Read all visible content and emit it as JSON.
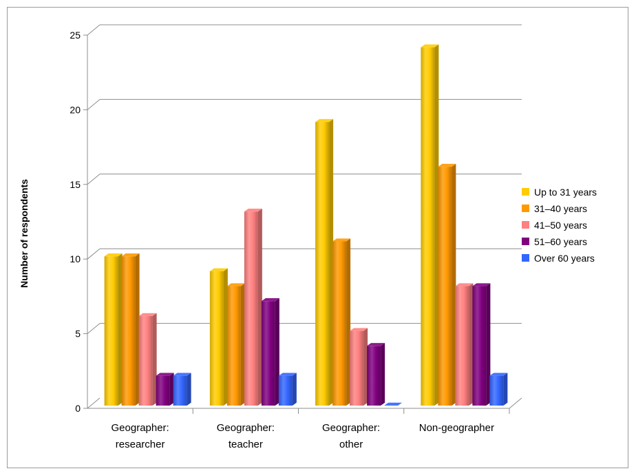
{
  "chart_data": {
    "type": "bar",
    "title": "",
    "xlabel": "",
    "ylabel": "Number of respondents",
    "ylim": [
      0,
      25
    ],
    "yticks": [
      0,
      5,
      10,
      15,
      20,
      25
    ],
    "grid": true,
    "legend_position": "right",
    "categories": [
      [
        "Geographer:",
        "researcher"
      ],
      [
        "Geographer:",
        "teacher"
      ],
      [
        "Geographer:",
        "other"
      ],
      [
        "Non-geographer"
      ]
    ],
    "series": [
      {
        "name": "Up to 31 years",
        "color": "#FFCC00",
        "values": [
          10,
          9,
          19,
          24
        ]
      },
      {
        "name": "31–40 years",
        "color": "#FF9900",
        "values": [
          10,
          8,
          11,
          16
        ]
      },
      {
        "name": "41–50 years",
        "color": "#FF8080",
        "values": [
          6,
          13,
          5,
          8
        ]
      },
      {
        "name": "51–60 years",
        "color": "#800080",
        "values": [
          2,
          7,
          4,
          8
        ]
      },
      {
        "name": "Over 60 years",
        "color": "#3366FF",
        "values": [
          2,
          2,
          0,
          2
        ]
      }
    ]
  }
}
